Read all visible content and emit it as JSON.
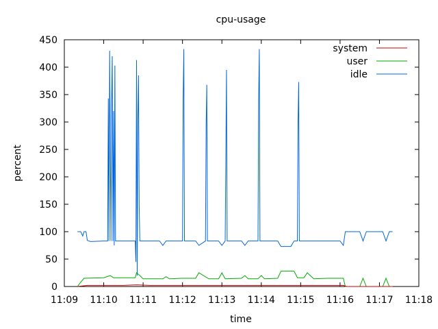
{
  "chart_data": {
    "type": "line",
    "title": "cpu-usage",
    "xlabel": "time",
    "ylabel": "percent",
    "xlim": [
      "11:09",
      "11:18"
    ],
    "ylim": [
      0,
      450
    ],
    "x_ticks": [
      "11:09",
      "11:10",
      "11:11",
      "11:12",
      "11:13",
      "11:14",
      "11:15",
      "11:16",
      "11:17",
      "11:18"
    ],
    "y_ticks": [
      0,
      50,
      100,
      150,
      200,
      250,
      300,
      350,
      400,
      450
    ],
    "legend_position": "top-right",
    "grid": false,
    "series": [
      {
        "name": "system",
        "color": "#cc0000",
        "points": [
          [
            "11:09:20",
            0
          ],
          [
            "11:09:35",
            2
          ],
          [
            "11:10:00",
            2
          ],
          [
            "11:10:30",
            2
          ],
          [
            "11:10:50",
            3
          ],
          [
            "11:11:10",
            2
          ],
          [
            "11:12:00",
            2
          ],
          [
            "11:13:00",
            2
          ],
          [
            "11:14:00",
            2
          ],
          [
            "11:15:00",
            2
          ],
          [
            "11:16:05",
            2
          ],
          [
            "11:16:10",
            0
          ],
          [
            "11:17:20",
            0
          ]
        ]
      },
      {
        "name": "user",
        "color": "#00aa00",
        "points": [
          [
            "11:09:20",
            0
          ],
          [
            "11:09:25",
            8
          ],
          [
            "11:09:30",
            15
          ],
          [
            "11:10:00",
            16
          ],
          [
            "11:10:05",
            18
          ],
          [
            "11:10:10",
            20
          ],
          [
            "11:10:15",
            16
          ],
          [
            "11:10:30",
            16
          ],
          [
            "11:10:48",
            16
          ],
          [
            "11:10:50",
            25
          ],
          [
            "11:10:55",
            20
          ],
          [
            "11:11:00",
            14
          ],
          [
            "11:11:30",
            14
          ],
          [
            "11:11:35",
            18
          ],
          [
            "11:11:40",
            14
          ],
          [
            "11:12:00",
            15
          ],
          [
            "11:12:20",
            15
          ],
          [
            "11:12:25",
            25
          ],
          [
            "11:12:40",
            14
          ],
          [
            "11:12:55",
            14
          ],
          [
            "11:13:00",
            25
          ],
          [
            "11:13:05",
            14
          ],
          [
            "11:13:30",
            15
          ],
          [
            "11:13:35",
            20
          ],
          [
            "11:13:40",
            14
          ],
          [
            "11:13:55",
            14
          ],
          [
            "11:14:00",
            20
          ],
          [
            "11:14:05",
            14
          ],
          [
            "11:14:25",
            15
          ],
          [
            "11:14:30",
            28
          ],
          [
            "11:14:50",
            28
          ],
          [
            "11:14:55",
            16
          ],
          [
            "11:15:05",
            16
          ],
          [
            "11:15:10",
            25
          ],
          [
            "11:15:20",
            14
          ],
          [
            "11:15:40",
            15
          ],
          [
            "11:16:00",
            15
          ],
          [
            "11:16:05",
            15
          ],
          [
            "11:16:08",
            0
          ],
          [
            "11:16:30",
            0
          ],
          [
            "11:16:35",
            15
          ],
          [
            "11:16:40",
            0
          ],
          [
            "11:17:05",
            0
          ],
          [
            "11:17:10",
            15
          ],
          [
            "11:17:15",
            0
          ],
          [
            "11:17:20",
            0
          ]
        ]
      },
      {
        "name": "idle",
        "color": "#0066dd",
        "points": [
          [
            "11:09:20",
            100
          ],
          [
            "11:09:25",
            100
          ],
          [
            "11:09:28",
            92
          ],
          [
            "11:09:30",
            100
          ],
          [
            "11:09:33",
            100
          ],
          [
            "11:09:35",
            84
          ],
          [
            "11:09:40",
            82
          ],
          [
            "11:10:00",
            83
          ],
          [
            "11:10:06",
            83
          ],
          [
            "11:10:07",
            343
          ],
          [
            "11:10:08",
            83
          ],
          [
            "11:10:09",
            430
          ],
          [
            "11:10:10",
            257
          ],
          [
            "11:10:11",
            83
          ],
          [
            "11:10:12",
            335
          ],
          [
            "11:10:13",
            420
          ],
          [
            "11:10:14",
            83
          ],
          [
            "11:10:15",
            320
          ],
          [
            "11:10:16",
            75
          ],
          [
            "11:10:17",
            403
          ],
          [
            "11:10:18",
            83
          ],
          [
            "11:10:45",
            83
          ],
          [
            "11:10:48",
            83
          ],
          [
            "11:10:49",
            45
          ],
          [
            "11:10:50",
            413
          ],
          [
            "11:10:51",
            20
          ],
          [
            "11:10:52",
            306
          ],
          [
            "11:10:53",
            385
          ],
          [
            "11:10:54",
            150
          ],
          [
            "11:10:55",
            83
          ],
          [
            "11:11:25",
            83
          ],
          [
            "11:11:30",
            75
          ],
          [
            "11:11:35",
            83
          ],
          [
            "11:11:55",
            83
          ],
          [
            "11:12:00",
            83
          ],
          [
            "11:12:01",
            345
          ],
          [
            "11:12:02",
            433
          ],
          [
            "11:12:03",
            83
          ],
          [
            "11:12:20",
            83
          ],
          [
            "11:12:25",
            75
          ],
          [
            "11:12:35",
            83
          ],
          [
            "11:12:36",
            295
          ],
          [
            "11:12:37",
            368
          ],
          [
            "11:12:38",
            83
          ],
          [
            "11:12:55",
            83
          ],
          [
            "11:13:00",
            75
          ],
          [
            "11:13:05",
            83
          ],
          [
            "11:13:06",
            230
          ],
          [
            "11:13:07",
            395
          ],
          [
            "11:13:08",
            83
          ],
          [
            "11:13:30",
            83
          ],
          [
            "11:13:35",
            75
          ],
          [
            "11:13:40",
            83
          ],
          [
            "11:13:55",
            83
          ],
          [
            "11:13:56",
            345
          ],
          [
            "11:13:57",
            433
          ],
          [
            "11:13:58",
            83
          ],
          [
            "11:14:15",
            83
          ],
          [
            "11:14:25",
            83
          ],
          [
            "11:14:30",
            73
          ],
          [
            "11:14:45",
            73
          ],
          [
            "11:14:50",
            83
          ],
          [
            "11:14:55",
            83
          ],
          [
            "11:14:56",
            300
          ],
          [
            "11:14:57",
            373
          ],
          [
            "11:14:58",
            83
          ],
          [
            "11:15:20",
            83
          ],
          [
            "11:15:40",
            83
          ],
          [
            "11:16:00",
            83
          ],
          [
            "11:16:05",
            75
          ],
          [
            "11:16:08",
            100
          ],
          [
            "11:16:30",
            100
          ],
          [
            "11:16:35",
            83
          ],
          [
            "11:16:40",
            100
          ],
          [
            "11:17:05",
            100
          ],
          [
            "11:17:10",
            83
          ],
          [
            "11:17:15",
            100
          ],
          [
            "11:17:20",
            100
          ]
        ]
      }
    ]
  }
}
